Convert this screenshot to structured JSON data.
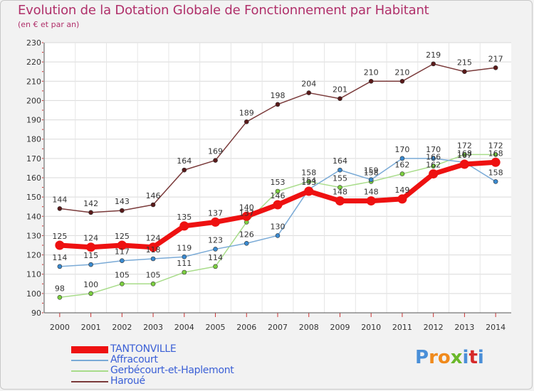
{
  "title": "Evolution de la Dotation Globale de Fonctionnement par Habitant",
  "subtitle": "(en € et par an)",
  "brand": {
    "text": "Proxiti",
    "letters": [
      "P",
      "r",
      "o",
      "x",
      "i",
      "t",
      "i"
    ],
    "colors": [
      "#4a8fd8",
      "#f08a1c",
      "#f08a1c",
      "#6ab82a",
      "#4a8fd8",
      "#d62a2a",
      "#4a8fd8"
    ]
  },
  "chart_data": {
    "type": "line",
    "title": "Evolution de la Dotation Globale de Fonctionnement par Habitant",
    "subtitle": "(en € et par an)",
    "xlabel": "",
    "ylabel": "",
    "ylim": [
      90,
      230
    ],
    "yticks": [
      90,
      100,
      110,
      120,
      130,
      140,
      150,
      160,
      170,
      180,
      190,
      200,
      210,
      220,
      230
    ],
    "categories": [
      "2000",
      "2001",
      "2002",
      "2003",
      "2004",
      "2005",
      "2006",
      "2007",
      "2008",
      "2009",
      "2010",
      "2011",
      "2012",
      "2013",
      "2014"
    ],
    "grid": true,
    "legend": "bottom-left",
    "series": [
      {
        "name": "TANTONVILLE",
        "color": "#ee1111",
        "marker_color": "#ee1111",
        "width": "thick",
        "values": [
          125,
          124,
          125,
          124,
          135,
          137,
          140,
          146,
          153,
          148,
          148,
          149,
          162,
          167,
          168
        ]
      },
      {
        "name": "Affracourt",
        "color": "#7aaad6",
        "marker_color": "#3a8ad0",
        "width": "thin",
        "values": [
          114,
          115,
          117,
          118,
          119,
          123,
          126,
          130,
          154,
          164,
          159,
          170,
          170,
          168,
          158
        ]
      },
      {
        "name": "Gerbécourt-et-Haplemont",
        "color": "#a8dc8a",
        "marker_color": "#7cd040",
        "width": "thin",
        "values": [
          98,
          100,
          105,
          105,
          111,
          114,
          137,
          153,
          158,
          155,
          158,
          162,
          166,
          172,
          172
        ]
      },
      {
        "name": "Haroué",
        "color": "#7a3a3a",
        "marker_color": "#5a1a1a",
        "width": "thin",
        "values": [
          144,
          142,
          143,
          146,
          164,
          169,
          189,
          198,
          204,
          201,
          210,
          210,
          219,
          215,
          217
        ]
      }
    ]
  }
}
